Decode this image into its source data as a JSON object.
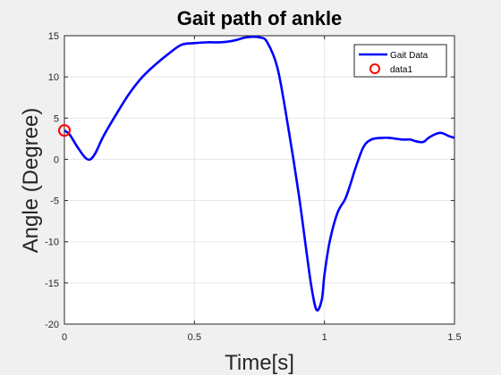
{
  "chart_data": {
    "type": "line",
    "title": "Gait path of ankle",
    "xlabel": "Time[s]",
    "ylabel": "Angle (Degree)",
    "xlim": [
      0,
      1.5
    ],
    "ylim": [
      -20,
      15
    ],
    "xticks": [
      0,
      0.5,
      1,
      1.5
    ],
    "xtick_labels": [
      "0",
      "0.5",
      "1",
      "1.5"
    ],
    "yticks": [
      15,
      10,
      5,
      0,
      -5,
      -10,
      -15,
      -20
    ],
    "ytick_labels": [
      "15",
      "10",
      "5",
      "0",
      "-5",
      "-10",
      "-15",
      "-20"
    ],
    "grid": true,
    "legend_position": "top-right",
    "series": [
      {
        "name": "Gait Data",
        "color": "#0000ff",
        "style": "line",
        "x": [
          0,
          0.02,
          0.05,
          0.08,
          0.1,
          0.12,
          0.15,
          0.2,
          0.25,
          0.3,
          0.35,
          0.4,
          0.45,
          0.5,
          0.55,
          0.6,
          0.65,
          0.7,
          0.75,
          0.78,
          0.82,
          0.86,
          0.9,
          0.93,
          0.95,
          0.97,
          0.99,
          1.0,
          1.02,
          1.05,
          1.08,
          1.1,
          1.12,
          1.15,
          1.18,
          1.22,
          1.25,
          1.3,
          1.33,
          1.35,
          1.38,
          1.4,
          1.43,
          1.45,
          1.48,
          1.5
        ],
        "y": [
          3.5,
          3.0,
          1.5,
          0.2,
          0.0,
          0.8,
          2.8,
          5.5,
          8.0,
          10.0,
          11.5,
          12.8,
          13.9,
          14.1,
          14.2,
          14.2,
          14.4,
          14.8,
          14.8,
          14.2,
          11.0,
          4.0,
          -4.0,
          -11.0,
          -15.5,
          -18.3,
          -17.0,
          -14.0,
          -10.0,
          -6.5,
          -4.8,
          -3.0,
          -1.0,
          1.5,
          2.4,
          2.6,
          2.6,
          2.4,
          2.4,
          2.2,
          2.1,
          2.6,
          3.1,
          3.2,
          2.8,
          2.6
        ]
      },
      {
        "name": "data1",
        "color": "#ff0000",
        "style": "marker",
        "marker": "circle",
        "x": [
          0
        ],
        "y": [
          3.5
        ]
      }
    ]
  }
}
